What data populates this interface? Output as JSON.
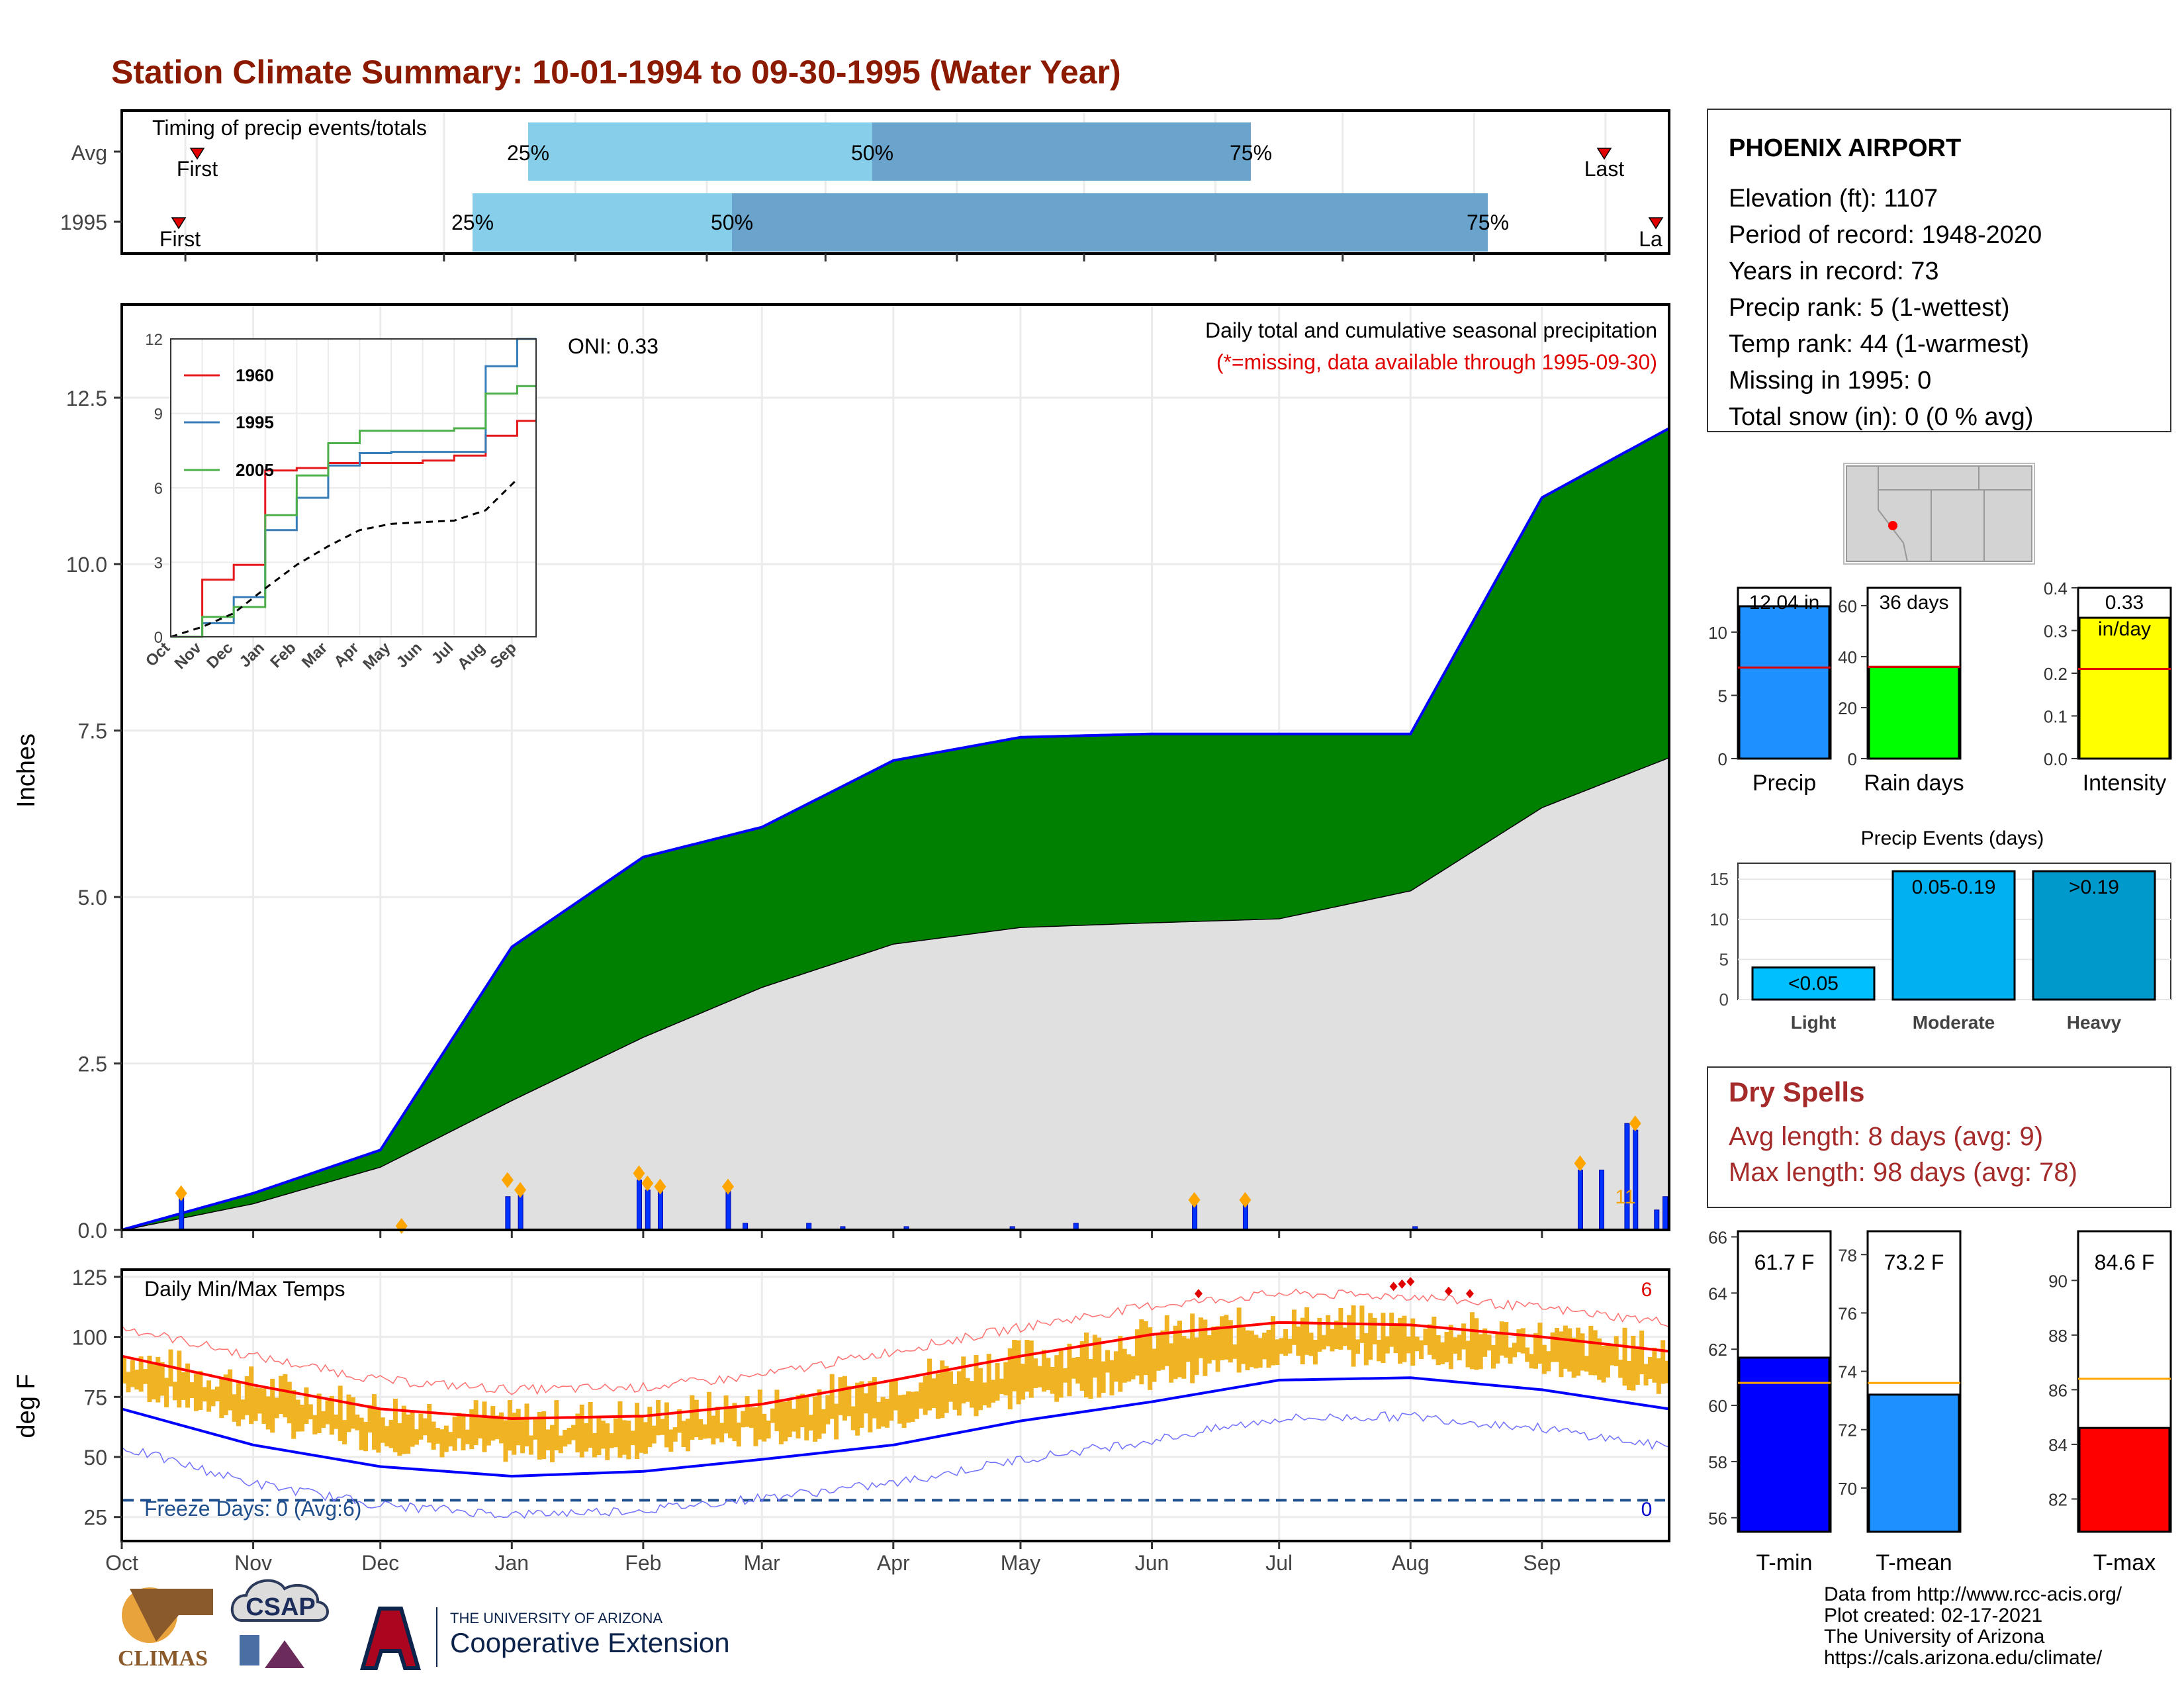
{
  "title": "Station Climate Summary: 10-01-1994 to 09-30-1995 (Water Year)",
  "colors": {
    "title": "#8B1A00",
    "precip_fill": "#008000",
    "avg_fill": "#e0e0e0",
    "precip_line": "#0000ff",
    "bar_light": "#87ceeb",
    "bar_dark": "#6aa4cc",
    "tmax": "#ff0000",
    "tmin": "#0000ff",
    "temp_range": "#f0b323",
    "marker": "#ffa500",
    "brown": "#8B5A1A"
  },
  "timing": {
    "title": "Timing of precip events/totals",
    "rows": [
      {
        "label": "Avg",
        "p25": "25%",
        "p50": "50%",
        "p75": "75%",
        "first": "First",
        "last": "Last"
      },
      {
        "label": "1995",
        "p25": "25%",
        "p50": "50%",
        "p75": "75%",
        "first": "First",
        "last": "La"
      }
    ]
  },
  "station": {
    "name": "PHOENIX AIRPORT",
    "lines": [
      "Elevation (ft): 1107",
      "Period of record: 1948-2020",
      "Years in record: 73",
      "Precip rank: 5 (1-wettest)",
      "Temp rank: 44 (1-warmest)",
      "Missing in 1995: 0",
      "Total snow (in): 0 (0 % avg)"
    ]
  },
  "precip_panel": {
    "ylabel": "Inches",
    "legend_main": "Daily total and cumulative seasonal precipitation",
    "legend_sub": "(*=missing, data available through 1995-09-30)",
    "oni": "ONI: 0.33",
    "yticks": [
      "0.0",
      "2.5",
      "5.0",
      "7.5",
      "10.0",
      "12.5"
    ],
    "count_label": "11"
  },
  "inset": {
    "yticks": [
      "0",
      "3",
      "6",
      "9",
      "12"
    ],
    "xticks": [
      "Oct",
      "Nov",
      "Dec",
      "Jan",
      "Feb",
      "Mar",
      "Apr",
      "May",
      "Jun",
      "Jul",
      "Aug",
      "Sep"
    ],
    "legend": [
      "1960",
      "1995",
      "2005"
    ]
  },
  "temp_panel": {
    "ylabel": "deg F",
    "title": "Daily Min/Max Temps",
    "freeze": "Freeze Days: 0 (Avg:6)",
    "yticks": [
      "25",
      "50",
      "75",
      "100",
      "125"
    ],
    "count_hot": "6",
    "count_freeze": "0"
  },
  "months": [
    "Oct",
    "Nov",
    "Dec",
    "Jan",
    "Feb",
    "Mar",
    "Apr",
    "May",
    "Jun",
    "Jul",
    "Aug",
    "Sep"
  ],
  "mini_bars": [
    {
      "label": "Precip",
      "value_text": "12.04 in",
      "yticks": [
        "0",
        "5",
        "10"
      ]
    },
    {
      "label": "Rain days",
      "value_text": "36 days",
      "yticks": [
        "0",
        "20",
        "40",
        "60"
      ]
    },
    {
      "label": "Intensity",
      "value_text": "0.33",
      "value_text2": "in/day",
      "yticks": [
        "0.0",
        "0.1",
        "0.2",
        "0.3",
        "0.4"
      ]
    }
  ],
  "events": {
    "title": "Precip Events (days)",
    "yticks": [
      "0",
      "5",
      "10",
      "15"
    ],
    "bars": [
      {
        "label": "Light",
        "text": "<0.05"
      },
      {
        "label": "Moderate",
        "text": "0.05-0.19"
      },
      {
        "label": "Heavy",
        "text": ">0.19"
      }
    ]
  },
  "dry": {
    "title": "Dry Spells",
    "avg": "Avg length: 8 days (avg: 9)",
    "max": "Max length: 98 days (avg: 78)"
  },
  "temp_bars": [
    {
      "label": "T-min",
      "value_text": "61.7 F",
      "yticks": [
        "56",
        "58",
        "60",
        "62",
        "64",
        "66"
      ]
    },
    {
      "label": "T-mean",
      "value_text": "73.2 F",
      "yticks": [
        "70",
        "72",
        "74",
        "76",
        "78"
      ]
    },
    {
      "label": "T-max",
      "value_text": "84.6 F",
      "yticks": [
        "82",
        "84",
        "86",
        "88",
        "90"
      ]
    }
  ],
  "footer": [
    "Data from http://www.rcc-acis.org/",
    "Plot created: 02-17-2021",
    "The University of Arizona",
    "https://cals.arizona.edu/climate/"
  ],
  "logos": {
    "climas": "CLIMAS",
    "csap": "CSAP",
    "ua_small": "THE UNIVERSITY OF ARIZONA",
    "ua_big": "Cooperative Extension"
  },
  "chart_data": [
    {
      "type": "bar",
      "title": "Timing of precip events/totals",
      "categories": [
        "Avg",
        "1995"
      ],
      "series": [
        {
          "name": "25%",
          "values": [
            "Jan 01",
            "Dec 26"
          ]
        },
        {
          "name": "50%",
          "values": [
            "Mar 29",
            "Feb 17"
          ]
        },
        {
          "name": "75%",
          "values": [
            "Jul 24",
            "Aug 17"
          ]
        }
      ]
    },
    {
      "type": "area",
      "title": "Daily total and cumulative seasonal precipitation",
      "ylabel": "Inches",
      "ylim": [
        0,
        13
      ],
      "x": [
        "Oct",
        "Nov",
        "Dec",
        "Jan",
        "Feb",
        "Mar",
        "Apr",
        "May",
        "Jun",
        "Jul",
        "Aug",
        "Sep",
        "Sep 30"
      ],
      "series": [
        {
          "name": "1995 cumulative",
          "values": [
            0.0,
            0.55,
            1.2,
            4.25,
            5.6,
            6.05,
            7.05,
            7.4,
            7.45,
            7.45,
            7.45,
            11.0,
            12.04
          ]
        },
        {
          "name": "average cumulative",
          "values": [
            0.0,
            0.4,
            0.95,
            1.95,
            2.9,
            3.65,
            4.3,
            4.55,
            4.62,
            4.68,
            5.1,
            6.35,
            7.1
          ]
        }
      ]
    },
    {
      "type": "line",
      "title": "",
      "ylim": [
        0,
        12
      ],
      "x": [
        "Oct",
        "Nov",
        "Dec",
        "Jan",
        "Feb",
        "Mar",
        "Apr",
        "May",
        "Jun",
        "Jul",
        "Aug",
        "Sep"
      ],
      "series": [
        {
          "name": "1960",
          "values": [
            0,
            2.3,
            2.9,
            6.7,
            6.8,
            7.0,
            7.0,
            7.0,
            7.1,
            7.3,
            8.1,
            8.7
          ]
        },
        {
          "name": "1995",
          "values": [
            0,
            0.55,
            1.6,
            4.3,
            5.6,
            6.9,
            7.4,
            7.45,
            7.45,
            7.45,
            10.9,
            12.0
          ]
        },
        {
          "name": "2005",
          "values": [
            0,
            0.8,
            1.2,
            4.9,
            6.5,
            7.8,
            8.3,
            8.3,
            8.3,
            8.4,
            9.8,
            10.1
          ]
        },
        {
          "name": "",
          "values": [
            0,
            0.4,
            0.95,
            1.95,
            2.9,
            3.65,
            4.3,
            4.55,
            4.62,
            4.68,
            5.1,
            6.35
          ]
        }
      ]
    },
    {
      "type": "line",
      "title": "Daily Min/Max Temps",
      "ylabel": "deg F",
      "ylim": [
        15,
        128
      ],
      "x": [
        "Oct",
        "Nov",
        "Dec",
        "Jan",
        "Feb",
        "Mar",
        "Apr",
        "May",
        "Jun",
        "Jul",
        "Aug",
        "Sep",
        "Sep 30"
      ],
      "series": [
        {
          "name": "avg max",
          "values": [
            92,
            80,
            70,
            66,
            67,
            72,
            82,
            92,
            101,
            106,
            105,
            100,
            94
          ]
        },
        {
          "name": "avg min",
          "values": [
            70,
            55,
            46,
            42,
            44,
            49,
            55,
            65,
            73,
            82,
            83,
            78,
            70
          ]
        }
      ]
    },
    {
      "type": "bar",
      "title": "",
      "categories": [
        "Precip",
        "Rain days",
        "Intensity"
      ],
      "values": [
        12.04,
        36,
        0.33
      ],
      "averages": [
        7.2,
        36,
        0.21
      ]
    },
    {
      "type": "bar",
      "title": "Precip Events (days)",
      "categories": [
        "Light",
        "Moderate",
        "Heavy"
      ],
      "values": [
        4,
        16,
        16
      ]
    },
    {
      "type": "bar",
      "title": "",
      "categories": [
        "T-min",
        "T-mean",
        "T-max"
      ],
      "values": [
        61.7,
        73.2,
        84.6
      ],
      "averages": [
        60.8,
        73.6,
        86.4
      ]
    }
  ]
}
